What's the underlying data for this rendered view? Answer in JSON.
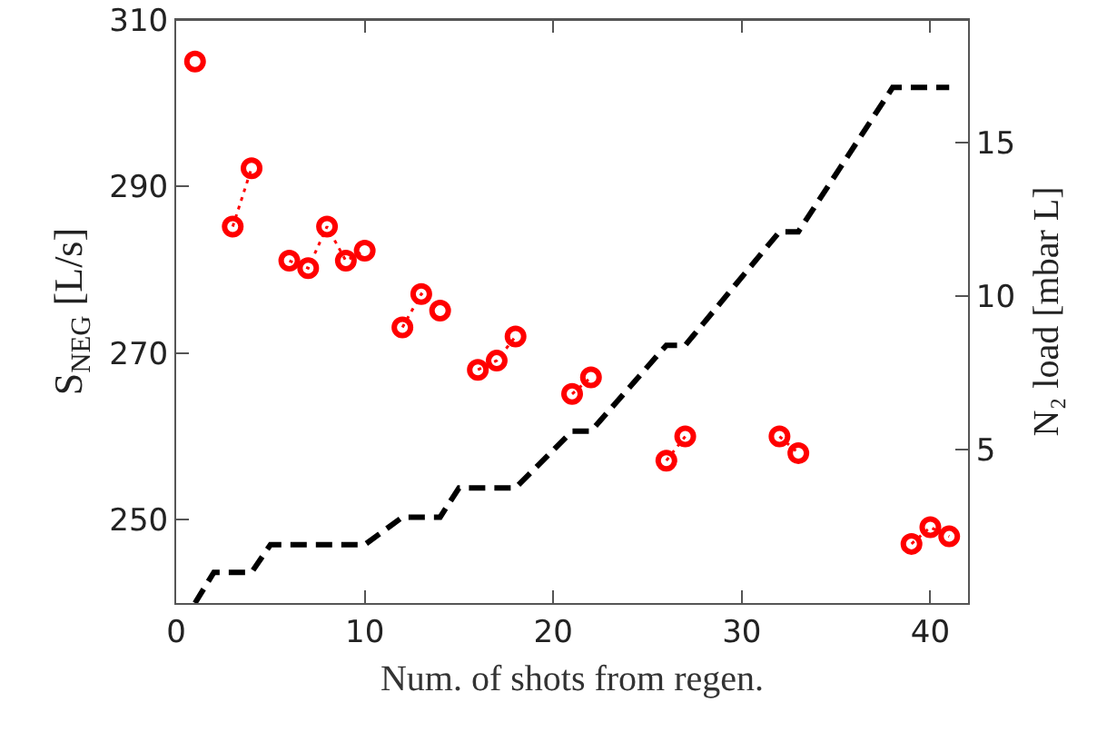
{
  "chart_data": {
    "type": "line",
    "xlabel": "Num. of shots from regen.",
    "ylabel": "S$_{NEG}$ [L/s]",
    "y2label": "N₂ load [mbar L]",
    "xlim": [
      0,
      42
    ],
    "xticks": [
      0,
      10,
      20,
      30,
      40
    ],
    "ylim": [
      240,
      310
    ],
    "yticks": [
      250,
      270,
      290,
      310
    ],
    "y2lim": [
      0,
      19
    ],
    "y2ticks": [
      5,
      10,
      15
    ],
    "grid": false,
    "series": [
      {
        "color": "#ff0000",
        "marker": "circle",
        "line_style": "dotted",
        "x": [
          1,
          2,
          3,
          4,
          5,
          6,
          7,
          8,
          9,
          10,
          11,
          12,
          13,
          14,
          15,
          16,
          17,
          18,
          19,
          20,
          21,
          22,
          23,
          24,
          25,
          26,
          27,
          28,
          29,
          30,
          31,
          32,
          33,
          34,
          35,
          36,
          37,
          38,
          39,
          40,
          41
        ],
        "values": [
          305,
          null,
          285.2,
          292.2,
          null,
          281.1,
          280.2,
          285.2,
          281.1,
          282.3,
          null,
          273.1,
          277.1,
          275.1,
          null,
          268,
          269.1,
          272,
          null,
          null,
          265.1,
          267.1,
          null,
          null,
          null,
          257.1,
          260,
          null,
          null,
          null,
          null,
          260,
          258,
          null,
          null,
          null,
          null,
          null,
          247.1,
          249.1,
          248
        ]
      },
      {
        "axis": "y2",
        "color": "#000000",
        "marker": "none",
        "line_style": "dashed",
        "x": [
          1,
          2,
          4,
          5,
          10,
          12,
          14,
          15,
          18,
          21,
          22,
          26,
          27,
          32,
          33,
          38,
          41
        ],
        "values": [
          0,
          1,
          1,
          1.9,
          1.9,
          2.8,
          2.8,
          3.75,
          3.75,
          5.6,
          5.6,
          8.4,
          8.4,
          12.1,
          12.1,
          16.8,
          16.8
        ]
      }
    ]
  }
}
